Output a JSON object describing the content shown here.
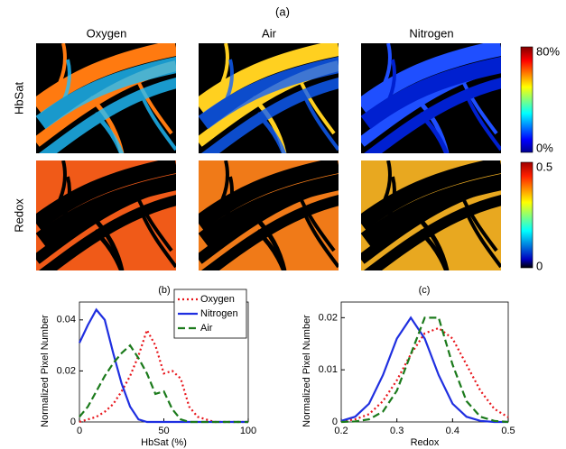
{
  "panel_labels": [
    "(a)",
    "(b)",
    "(c)"
  ],
  "image_grid": {
    "columns": [
      "Oxygen",
      "Air",
      "Nitrogen"
    ],
    "rows": [
      "HbSat",
      "Redox"
    ],
    "colorbars": [
      {
        "top_label": "80%",
        "bottom_label": "0%"
      },
      {
        "top_label": "0.5",
        "bottom_label": "0"
      }
    ]
  },
  "chart_data": [
    {
      "type": "line",
      "xlabel": "HbSat (%)",
      "ylabel": "Normalized Pixel Number",
      "x": [
        0,
        5,
        10,
        15,
        20,
        25,
        30,
        35,
        40,
        45,
        50,
        55,
        60,
        65,
        70,
        75,
        80,
        85,
        90,
        95,
        100
      ],
      "xlim": [
        0,
        100
      ],
      "xticks": [
        0,
        50,
        100
      ],
      "ylim": [
        0,
        0.047
      ],
      "yticks": [
        0,
        0.02,
        0.04
      ],
      "legend": "upper right",
      "series": [
        {
          "name": "Oxygen",
          "color": "#e8151b",
          "dash": "dotted",
          "values": [
            0,
            0.001,
            0.002,
            0.004,
            0.007,
            0.012,
            0.018,
            0.026,
            0.036,
            0.03,
            0.019,
            0.02,
            0.017,
            0.006,
            0.002,
            0.001,
            0,
            0,
            0,
            0,
            0
          ]
        },
        {
          "name": "Nitrogen",
          "color": "#1f2fe0",
          "dash": "solid",
          "values": [
            0.031,
            0.038,
            0.044,
            0.04,
            0.027,
            0.015,
            0.006,
            0.001,
            0,
            0,
            0,
            0,
            0,
            0,
            0,
            0,
            0,
            0,
            0,
            0,
            0
          ]
        },
        {
          "name": "Air",
          "color": "#1b7a1b",
          "dash": "dashed",
          "values": [
            0.002,
            0.006,
            0.012,
            0.018,
            0.023,
            0.027,
            0.03,
            0.025,
            0.019,
            0.011,
            0.012,
            0.005,
            0.001,
            0,
            0,
            0,
            0,
            0,
            0,
            0,
            0
          ]
        }
      ]
    },
    {
      "type": "line",
      "xlabel": "Redox",
      "ylabel": "Normalized Pixel Number",
      "x": [
        0.2,
        0.225,
        0.25,
        0.275,
        0.3,
        0.325,
        0.35,
        0.375,
        0.4,
        0.425,
        0.45,
        0.475,
        0.5
      ],
      "xlim": [
        0.2,
        0.5
      ],
      "xticks": [
        0.2,
        0.3,
        0.4,
        0.5
      ],
      "ylim": [
        0,
        0.023
      ],
      "yticks": [
        0,
        0.01,
        0.02
      ],
      "series": [
        {
          "color": "#e8151b",
          "dash": "dotted",
          "values": [
            0.0001,
            0.0005,
            0.0015,
            0.004,
            0.008,
            0.013,
            0.017,
            0.018,
            0.016,
            0.011,
            0.006,
            0.0025,
            0.0009
          ]
        },
        {
          "color": "#1f2fe0",
          "dash": "solid",
          "values": [
            0.0002,
            0.001,
            0.0035,
            0.009,
            0.016,
            0.02,
            0.016,
            0.009,
            0.0035,
            0.001,
            0.0002,
            0,
            0
          ]
        },
        {
          "color": "#1b7a1b",
          "dash": "dashed",
          "values": [
            0,
            0.0001,
            0.0005,
            0.002,
            0.006,
            0.013,
            0.02,
            0.02,
            0.011,
            0.004,
            0.001,
            0.0002,
            0
          ]
        }
      ]
    }
  ]
}
